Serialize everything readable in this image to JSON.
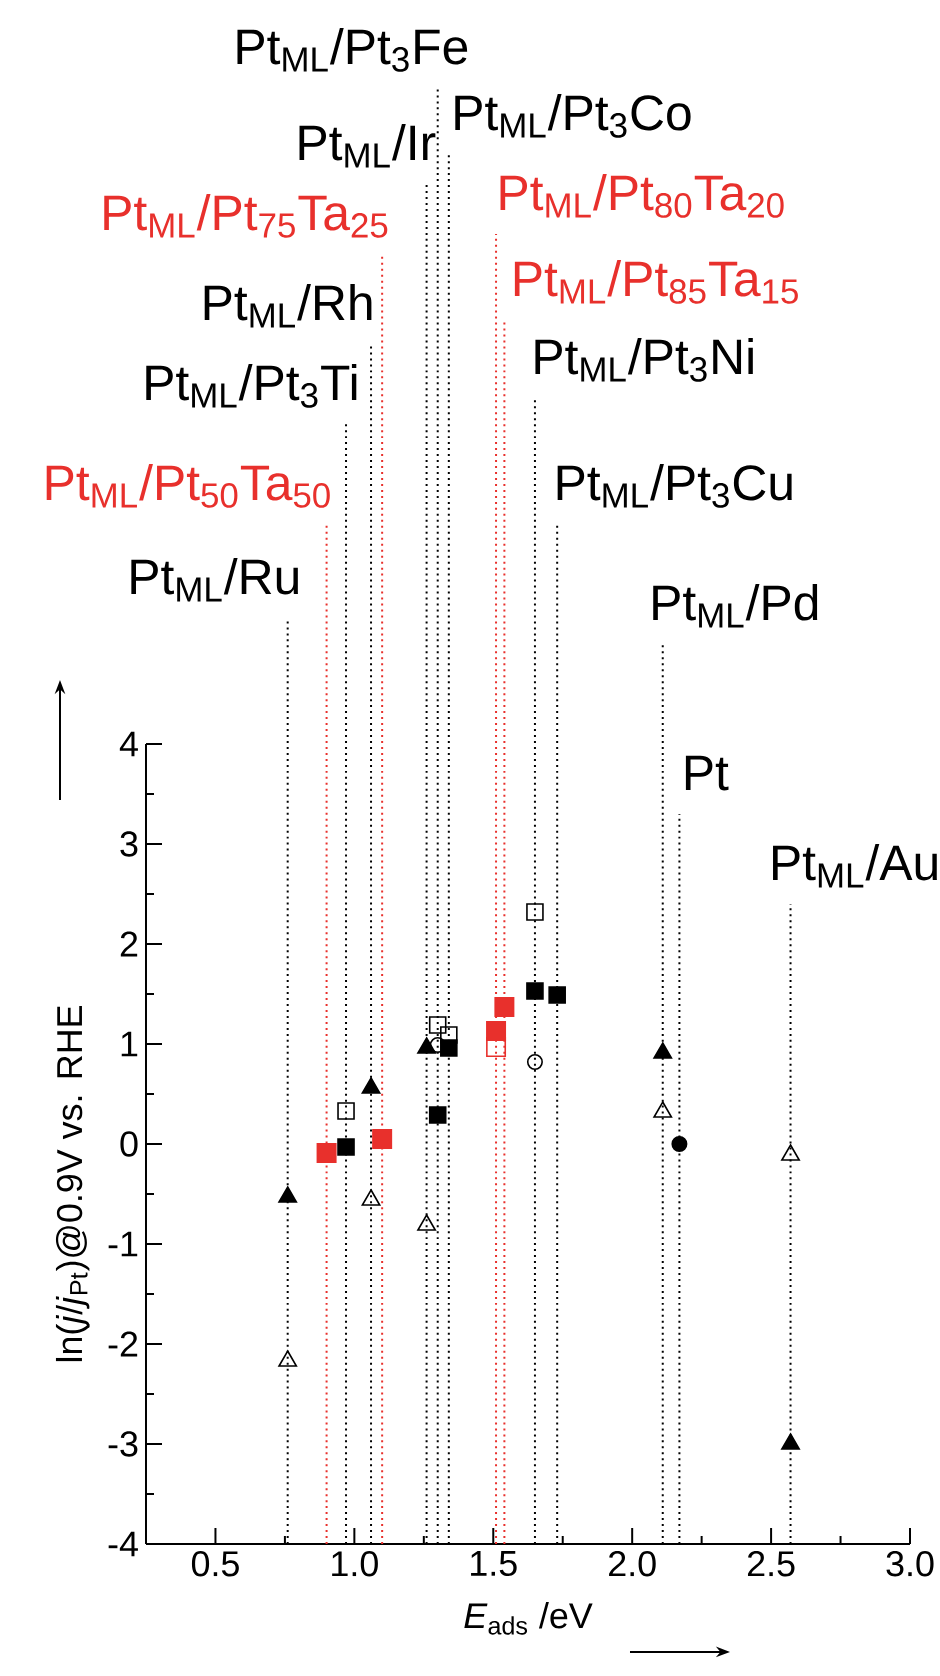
{
  "chart_data": {
    "type": "scatter",
    "xlabel": "*E*$_{ads}$ /eV",
    "ylabel": "ln(*j*/*j*$_{Pt}$)@0.9V vs. RHE",
    "xlim": [
      0.25,
      3.0
    ],
    "xticks": [
      0.5,
      {
        "value": 1.0,
        "label": "1.0"
      },
      1.5,
      {
        "value": 2.0,
        "label": "2.0"
      },
      2.5,
      {
        "value": 3.0,
        "label": "3.0"
      }
    ],
    "ylim": [
      -4,
      4
    ],
    "yticks": [
      -4,
      -3,
      -2,
      -1,
      0,
      1,
      2,
      3,
      4
    ],
    "series": [
      {
        "marker": "triangle",
        "color": "#000000",
        "x": [
          0.76,
          1.06,
          1.26,
          2.11,
          2.57
        ],
        "values": [
          -0.53,
          0.56,
          0.96,
          0.91,
          -3.0
        ]
      },
      {
        "marker": "triangle",
        "color": "#000000",
        "x": [
          0.76,
          1.06,
          1.26,
          2.11,
          2.57
        ],
        "values": [
          -2.17,
          -0.56,
          -0.81,
          0.32,
          -0.11
        ]
      },
      {
        "marker": "square",
        "color": "#000000",
        "x": [
          0.97,
          1.3,
          1.34,
          1.65,
          1.73
        ],
        "values": [
          -0.03,
          0.29,
          0.96,
          1.53,
          1.49
        ]
      },
      {
        "marker": "square",
        "color": "#000000",
        "x": [
          0.97,
          1.3,
          1.34,
          1.65
        ],
        "values": [
          0.33,
          1.19,
          1.09,
          2.32
        ]
      },
      {
        "marker": "circle",
        "color": "#000000",
        "x": [
          1.3,
          1.65
        ],
        "values": [
          0.99,
          0.82
        ]
      },
      {
        "marker": "circle",
        "color": "#000000",
        "x": [
          2.17
        ],
        "values": [
          0.0
        ]
      },
      {
        "marker": "square",
        "color": "#e8302c",
        "x": [
          0.9,
          1.1,
          1.54,
          1.51
        ],
        "values": [
          -0.09,
          0.05,
          1.37,
          1.13
        ]
      },
      {
        "marker": "square",
        "color": "#e8302c",
        "x": [
          1.51
        ],
        "values": [
          0.97
        ]
      }
    ],
    "ref_lines": [
      {
        "axis": "x",
        "value": 0.76,
        "label": "Pt$_{ML}$/Ru",
        "color": "#000000",
        "line_style": "dotted"
      },
      {
        "axis": "x",
        "value": 0.9,
        "label": "Pt$_{ML}$/Pt$_{50}$Ta$_{50}$",
        "color": "#e8302c",
        "line_style": "dotted"
      },
      {
        "axis": "x",
        "value": 0.97,
        "label": "Pt$_{ML}$/Pt$_{3}$Ti",
        "color": "#000000",
        "line_style": "dotted"
      },
      {
        "axis": "x",
        "value": 1.06,
        "label": "Pt$_{ML}$/Rh",
        "color": "#000000",
        "line_style": "dotted"
      },
      {
        "axis": "x",
        "value": 1.1,
        "label": "Pt$_{ML}$/Pt$_{75}$Ta$_{25}$",
        "color": "#e8302c",
        "line_style": "dotted"
      },
      {
        "axis": "x",
        "value": 1.26,
        "label": "Pt$_{ML}$/Ir",
        "color": "#000000",
        "line_style": "dotted"
      },
      {
        "axis": "x",
        "value": 1.3,
        "label": "Pt$_{ML}$/Pt$_{3}$Fe",
        "color": "#000000",
        "line_style": "dotted"
      },
      {
        "axis": "x",
        "value": 1.34,
        "label": "Pt$_{ML}$/Pt$_{3}$Co",
        "color": "#000000",
        "line_style": "dotted"
      },
      {
        "axis": "x",
        "value": 1.51,
        "label": "Pt$_{ML}$/Pt$_{80}$Ta$_{20}$",
        "color": "#e8302c",
        "line_style": "dotted"
      },
      {
        "axis": "x",
        "value": 1.54,
        "label": "Pt$_{ML}$/Pt$_{85}$Ta$_{15}$",
        "color": "#e8302c",
        "line_style": "dotted"
      },
      {
        "axis": "x",
        "value": 1.65,
        "label": "Pt$_{ML}$/Pt$_{3}$Ni",
        "color": "#000000",
        "line_style": "dotted"
      },
      {
        "axis": "x",
        "value": 1.73,
        "label": "Pt$_{ML}$/Pt$_{3}$Cu",
        "color": "#000000",
        "line_style": "dotted"
      },
      {
        "axis": "x",
        "value": 2.11,
        "label": "Pt$_{ML}$/Pd",
        "color": "#000000",
        "line_style": "dotted"
      },
      {
        "axis": "x",
        "value": 2.17,
        "label": "Pt",
        "color": "#000000",
        "line_style": "dotted"
      },
      {
        "axis": "x",
        "value": 2.57,
        "label": "Pt$_{ML}$/Au",
        "color": "#000000",
        "line_style": "dotted"
      }
    ]
  }
}
